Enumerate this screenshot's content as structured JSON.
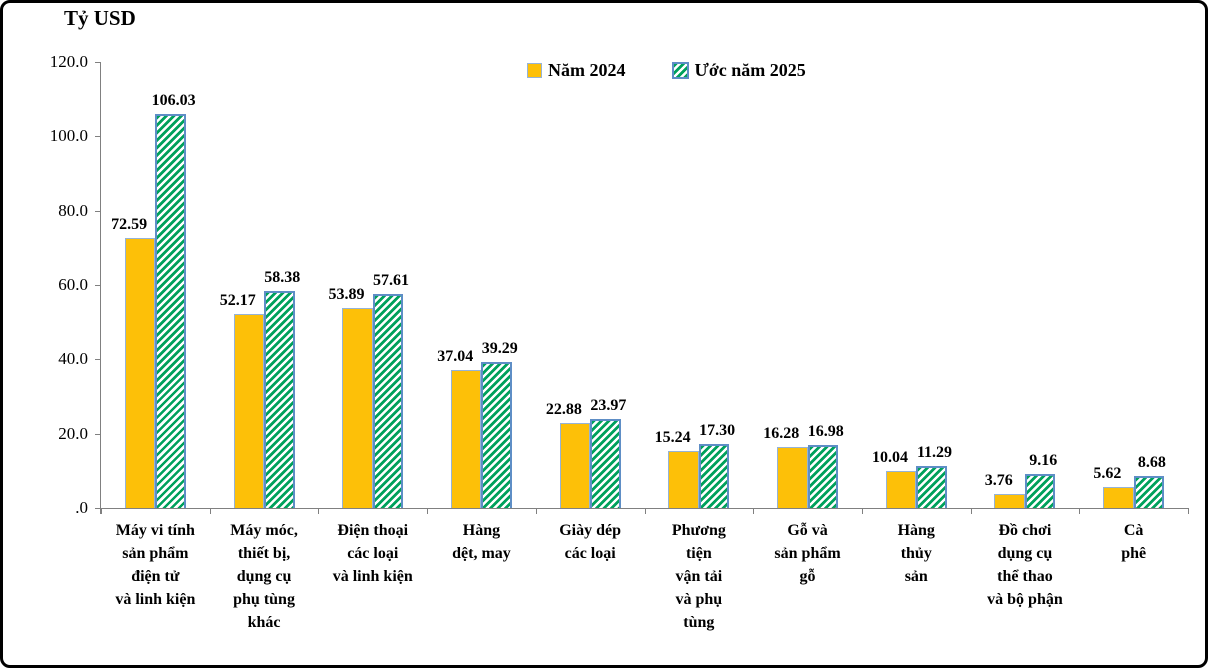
{
  "title": "Tỷ USD",
  "legend": {
    "items": [
      {
        "label": "Năm 2024",
        "swatch": "solid-yellow-square"
      },
      {
        "label": "Ước năm 2025",
        "swatch": "green-diagonal-hatch-square"
      }
    ],
    "position": "top-center"
  },
  "colors": {
    "bar_2024_fill": "#FDC008",
    "bar_2024_border": "#95B3D7",
    "hatch_green": "#00A15C",
    "hatch_background": "#FFFFFF",
    "bar_2025_border": "#5E8EC6",
    "axis": "#808080",
    "text": "#000000",
    "frame_border": "#000000",
    "background": "#FFFFFF"
  },
  "chart_data": {
    "type": "bar",
    "title": "Tỷ USD",
    "ylabel": "Tỷ USD",
    "xlabel": "",
    "grid": false,
    "legend_position": "top",
    "ylim": [
      0,
      120
    ],
    "ytick_labels": [
      "120.0",
      "100.0",
      "80.0",
      "60.0",
      "40.0",
      "20.0",
      ".0"
    ],
    "categories": [
      "Máy vi tính\nsản phẩm\nđiện tử\nvà linh kiện",
      "Máy móc,\nthiết bị,\ndụng cụ\nphụ tùng\nkhác",
      "Điện thoại\ncác loại\nvà linh kiện",
      "Hàng\ndệt, may",
      "Giày dép\ncác loại",
      "Phương\ntiện\nvận tải\nvà phụ\ntùng",
      "Gỗ và\nsản phẩm\ngỗ",
      "Hàng\nthủy\nsản",
      "Đồ chơi\ndụng cụ\nthể thao\nvà bộ phận",
      "Cà\nphê"
    ],
    "series": [
      {
        "name": "Năm 2024",
        "style": "solid-yellow",
        "values": [
          72.59,
          52.17,
          53.89,
          37.04,
          22.88,
          15.24,
          16.28,
          10.04,
          3.76,
          5.62
        ]
      },
      {
        "name": "Ước năm 2025",
        "style": "green-diagonal-hatch",
        "values": [
          106.03,
          58.38,
          57.61,
          39.29,
          23.97,
          17.3,
          16.98,
          11.29,
          9.16,
          8.68
        ]
      }
    ]
  }
}
